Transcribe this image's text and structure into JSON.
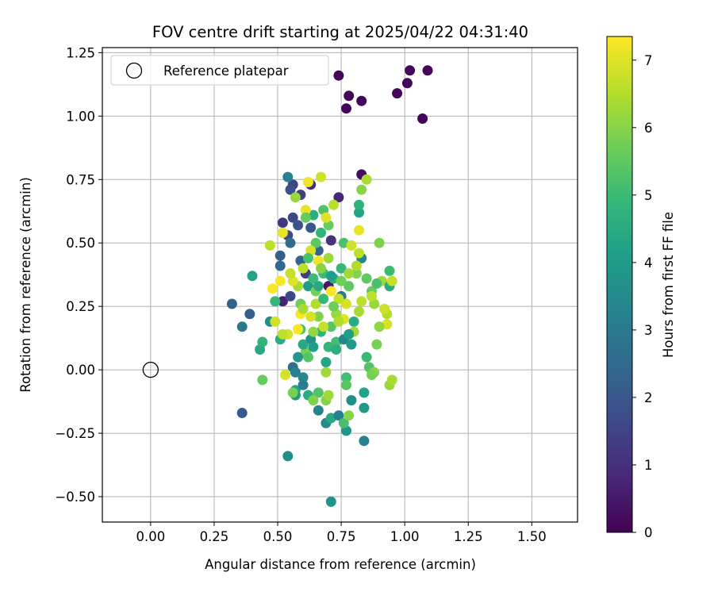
{
  "chart_data": {
    "type": "scatter",
    "title": "FOV centre drift starting at 2025/04/22 04:31:40",
    "xlabel": "Angular distance from reference (arcmin)",
    "ylabel": "Rotation from reference (arcmin)",
    "xlim": [
      -0.19,
      1.68
    ],
    "ylim": [
      -0.6,
      1.27
    ],
    "xticks": [
      "0.00",
      "0.25",
      "0.50",
      "0.75",
      "1.00",
      "1.25",
      "1.50"
    ],
    "yticks": [
      "−0.50",
      "−0.25",
      "0.00",
      "0.25",
      "0.50",
      "0.75",
      "1.00",
      "1.25"
    ],
    "grid": true,
    "legend": {
      "placement": "top-left",
      "entries": [
        {
          "label": "Reference platepar",
          "marker": "open-circle"
        }
      ]
    },
    "reference_point": {
      "x": 0.0,
      "y": 0.0
    },
    "colorbar": {
      "label": "Hours from first FF file",
      "colormap": "viridis",
      "range": [
        0,
        7.35
      ],
      "ticks": [
        "0",
        "1",
        "2",
        "3",
        "4",
        "5",
        "6",
        "7"
      ]
    },
    "colormap_stops": [
      "#440154",
      "#482878",
      "#3e4989",
      "#31688e",
      "#26828e",
      "#1f9e89",
      "#35b779",
      "#6ece58",
      "#b5de2b",
      "#fde725"
    ],
    "points": [
      [
        0.74,
        1.16,
        0.1
      ],
      [
        0.78,
        1.08,
        0.1
      ],
      [
        0.77,
        1.03,
        0.1
      ],
      [
        0.83,
        1.06,
        0.1
      ],
      [
        0.97,
        1.09,
        0.1
      ],
      [
        1.02,
        1.18,
        0.1
      ],
      [
        1.09,
        1.18,
        0.1
      ],
      [
        1.01,
        1.13,
        0.1
      ],
      [
        1.07,
        0.99,
        0.1
      ],
      [
        0.83,
        0.77,
        0.3
      ],
      [
        0.74,
        0.68,
        0.8
      ],
      [
        0.63,
        0.73,
        1.0
      ],
      [
        0.56,
        0.73,
        1.5
      ],
      [
        0.55,
        0.71,
        1.8
      ],
      [
        0.59,
        0.69,
        1.4
      ],
      [
        0.56,
        0.6,
        1.6
      ],
      [
        0.52,
        0.58,
        1.2
      ],
      [
        0.58,
        0.57,
        1.9
      ],
      [
        0.63,
        0.56,
        2.0
      ],
      [
        0.54,
        0.53,
        1.7
      ],
      [
        0.51,
        0.45,
        2.2
      ],
      [
        0.51,
        0.41,
        2.5
      ],
      [
        0.59,
        0.43,
        2.4
      ],
      [
        0.55,
        0.5,
        2.6
      ],
      [
        0.66,
        0.47,
        2.3
      ],
      [
        0.71,
        0.51,
        1.1
      ],
      [
        0.7,
        0.33,
        0.5
      ],
      [
        0.61,
        0.38,
        1.3
      ],
      [
        0.52,
        0.27,
        0.7
      ],
      [
        0.55,
        0.29,
        1.6
      ],
      [
        0.32,
        0.26,
        2.3
      ],
      [
        0.39,
        0.22,
        2.2
      ],
      [
        0.36,
        0.17,
        3.0
      ],
      [
        0.36,
        -0.17,
        2.1
      ],
      [
        0.54,
        -0.34,
        3.6
      ],
      [
        0.71,
        -0.52,
        3.8
      ],
      [
        0.4,
        0.37,
        4.2
      ],
      [
        0.43,
        0.08,
        4.4
      ],
      [
        0.44,
        0.11,
        4.8
      ],
      [
        0.44,
        -0.04,
        5.6
      ],
      [
        0.47,
        0.19,
        3.6
      ],
      [
        0.49,
        0.27,
        4.9
      ],
      [
        0.51,
        0.12,
        4.5
      ],
      [
        0.54,
        0.76,
        3.3
      ],
      [
        0.56,
        0.01,
        2.7
      ],
      [
        0.57,
        -0.01,
        3.2
      ],
      [
        0.57,
        -0.08,
        4.2
      ],
      [
        0.57,
        -0.1,
        3.9
      ],
      [
        0.59,
        0.16,
        5.2
      ],
      [
        0.59,
        0.26,
        5.7
      ],
      [
        0.6,
        -0.03,
        3.4
      ],
      [
        0.6,
        -0.06,
        3.1
      ],
      [
        0.61,
        0.07,
        5.8
      ],
      [
        0.62,
        0.33,
        4.0
      ],
      [
        0.62,
        -0.1,
        4.5
      ],
      [
        0.63,
        0.12,
        3.7
      ],
      [
        0.64,
        0.09,
        4.1
      ],
      [
        0.64,
        0.61,
        4.6
      ],
      [
        0.65,
        0.5,
        5.5
      ],
      [
        0.66,
        0.21,
        5.9
      ],
      [
        0.66,
        -0.09,
        5.3
      ],
      [
        0.66,
        -0.16,
        3.3
      ],
      [
        0.67,
        0.15,
        4.7
      ],
      [
        0.68,
        0.63,
        5.3
      ],
      [
        0.68,
        0.38,
        5.0
      ],
      [
        0.69,
        0.03,
        4.3
      ],
      [
        0.69,
        -0.21,
        3.5
      ],
      [
        0.7,
        0.57,
        5.6
      ],
      [
        0.7,
        0.09,
        4.8
      ],
      [
        0.71,
        0.17,
        5.4
      ],
      [
        0.71,
        -0.19,
        4.4
      ],
      [
        0.72,
        0.36,
        4.6
      ],
      [
        0.73,
        0.11,
        5.1
      ],
      [
        0.74,
        -0.18,
        3.2
      ],
      [
        0.75,
        0.29,
        3.0
      ],
      [
        0.75,
        0.4,
        4.9
      ],
      [
        0.76,
        0.5,
        5.2
      ],
      [
        0.76,
        0.12,
        3.4
      ],
      [
        0.77,
        -0.03,
        5.1
      ],
      [
        0.77,
        -0.06,
        5.4
      ],
      [
        0.77,
        -0.24,
        3.8
      ],
      [
        0.78,
        0.33,
        5.5
      ],
      [
        0.79,
        0.1,
        4.0
      ],
      [
        0.79,
        -0.12,
        3.6
      ],
      [
        0.8,
        0.19,
        4.5
      ],
      [
        0.81,
        0.38,
        5.9
      ],
      [
        0.82,
        0.62,
        4.3
      ],
      [
        0.82,
        0.65,
        4.7
      ],
      [
        0.83,
        0.44,
        3.4
      ],
      [
        0.84,
        -0.09,
        4.2
      ],
      [
        0.84,
        -0.15,
        3.9
      ],
      [
        0.84,
        -0.28,
        3.3
      ],
      [
        0.85,
        0.05,
        5.0
      ],
      [
        0.86,
        0.01,
        5.3
      ],
      [
        0.87,
        0.31,
        5.6
      ],
      [
        0.88,
        0.26,
        6.2
      ],
      [
        0.89,
        0.1,
        5.8
      ],
      [
        0.9,
        0.5,
        5.9
      ],
      [
        0.91,
        0.35,
        6.3
      ],
      [
        0.93,
        0.22,
        6.5
      ],
      [
        0.94,
        0.33,
        4.5
      ],
      [
        0.94,
        0.39,
        5.0
      ],
      [
        0.94,
        -0.06,
        6.2
      ],
      [
        0.95,
        0.35,
        6.7
      ],
      [
        0.95,
        -0.04,
        6.4
      ],
      [
        0.93,
        0.18,
        6.9
      ],
      [
        0.92,
        0.24,
        6.8
      ],
      [
        0.9,
        0.17,
        6.1
      ],
      [
        0.88,
        -0.01,
        6.0
      ],
      [
        0.87,
        0.29,
        6.6
      ],
      [
        0.85,
        0.75,
        6.4
      ],
      [
        0.83,
        0.71,
        6.0
      ],
      [
        0.82,
        0.55,
        7.1
      ],
      [
        0.82,
        0.46,
        6.6
      ],
      [
        0.81,
        0.41,
        6.5
      ],
      [
        0.79,
        0.49,
        6.8
      ],
      [
        0.78,
        0.38,
        6.3
      ],
      [
        0.77,
        0.26,
        6.9
      ],
      [
        0.76,
        0.2,
        7.0
      ],
      [
        0.74,
        0.28,
        6.7
      ],
      [
        0.73,
        0.22,
        6.2
      ],
      [
        0.71,
        0.31,
        7.3
      ],
      [
        0.7,
        0.44,
        6.3
      ],
      [
        0.69,
        0.6,
        7.0
      ],
      [
        0.69,
        -0.01,
        6.3
      ],
      [
        0.68,
        0.17,
        6.7
      ],
      [
        0.67,
        0.76,
        6.8
      ],
      [
        0.66,
        0.43,
        7.2
      ],
      [
        0.65,
        0.26,
        6.5
      ],
      [
        0.64,
        0.15,
        6.1
      ],
      [
        0.63,
        0.47,
        6.9
      ],
      [
        0.62,
        0.74,
        7.2
      ],
      [
        0.61,
        0.63,
        7.1
      ],
      [
        0.6,
        0.4,
        6.6
      ],
      [
        0.59,
        0.22,
        7.3
      ],
      [
        0.58,
        0.16,
        7.3
      ],
      [
        0.58,
        0.33,
        6.4
      ],
      [
        0.57,
        0.68,
        6.2
      ],
      [
        0.56,
        0.35,
        7.0
      ],
      [
        0.55,
        0.38,
        6.7
      ],
      [
        0.54,
        0.14,
        6.9
      ],
      [
        0.53,
        -0.02,
        6.9
      ],
      [
        0.52,
        0.14,
        6.6
      ],
      [
        0.52,
        0.54,
        7.1
      ],
      [
        0.51,
        0.35,
        7.3
      ],
      [
        0.49,
        0.19,
        6.8
      ],
      [
        0.48,
        0.32,
        7.3
      ],
      [
        0.47,
        0.49,
        6.6
      ],
      [
        0.56,
        -0.09,
        5.8
      ],
      [
        0.6,
        0.24,
        6.4
      ],
      [
        0.62,
        0.05,
        5.4
      ],
      [
        0.63,
        0.21,
        6.9
      ],
      [
        0.64,
        -0.12,
        5.9
      ],
      [
        0.65,
        0.31,
        5.8
      ],
      [
        0.67,
        0.4,
        6.0
      ],
      [
        0.69,
        -0.12,
        5.9
      ],
      [
        0.7,
        -0.1,
        6.3
      ],
      [
        0.72,
        0.65,
        6.6
      ],
      [
        0.74,
        0.19,
        6.5
      ],
      [
        0.76,
        -0.21,
        5.2
      ],
      [
        0.78,
        -0.18,
        6.0
      ],
      [
        0.8,
        0.15,
        6.3
      ],
      [
        0.82,
        0.23,
        6.4
      ],
      [
        0.83,
        0.27,
        6.6
      ],
      [
        0.85,
        0.36,
        5.5
      ],
      [
        0.87,
        -0.02,
        5.8
      ],
      [
        0.89,
        0.34,
        5.2
      ],
      [
        0.61,
        0.6,
        5.6
      ],
      [
        0.64,
        0.36,
        5.0
      ],
      [
        0.66,
        0.33,
        4.4
      ],
      [
        0.68,
        0.28,
        4.9
      ],
      [
        0.71,
        0.37,
        4.1
      ],
      [
        0.73,
        0.08,
        4.6
      ],
      [
        0.75,
        0.35,
        5.7
      ],
      [
        0.6,
        0.1,
        4.4
      ],
      [
        0.58,
        0.05,
        3.9
      ],
      [
        0.62,
        0.44,
        5.2
      ],
      [
        0.67,
        0.54,
        4.8
      ],
      [
        0.72,
        0.25,
        5.7
      ],
      [
        0.78,
        0.14,
        4.1
      ]
    ]
  }
}
